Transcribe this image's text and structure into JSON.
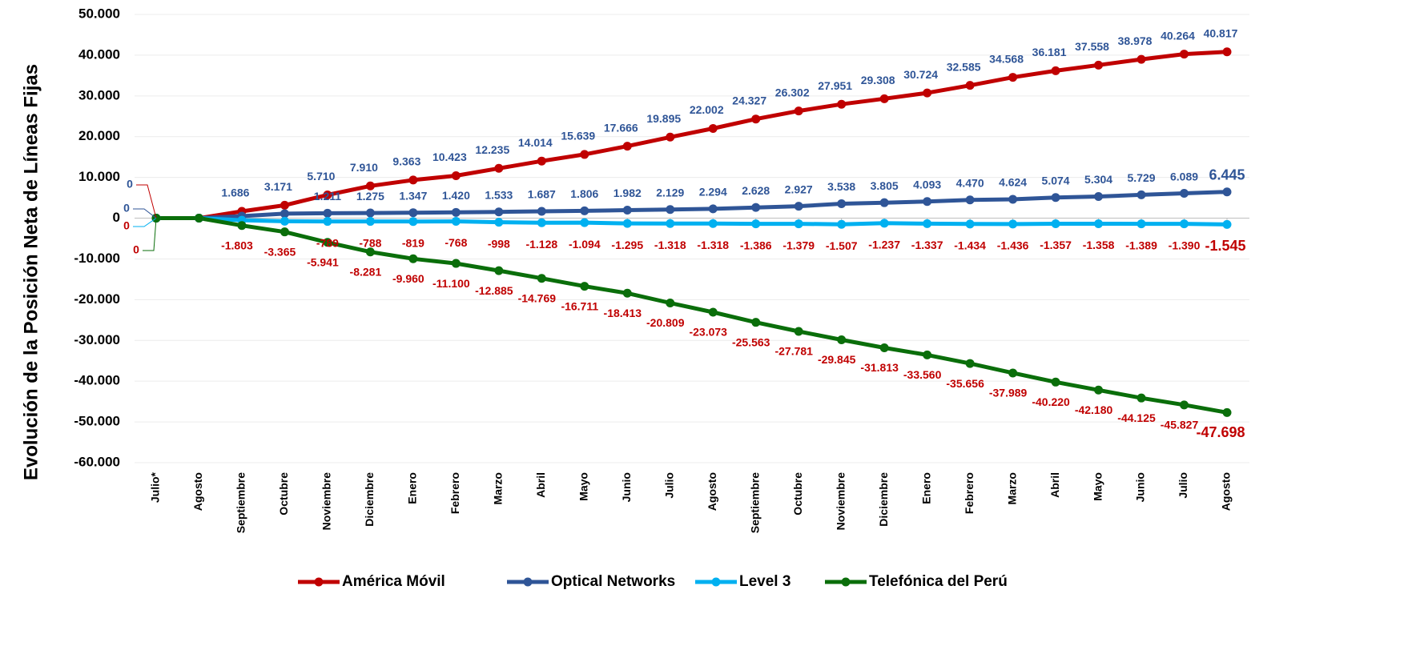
{
  "chart_data": {
    "type": "line",
    "y_label": "Evolución de la Posición Neta de Líneas Fijas",
    "categories": [
      "Julio*",
      "Agosto",
      "Septiembre",
      "Octubre",
      "Noviembre",
      "Diciembre",
      "Enero",
      "Febrero",
      "Marzo",
      "Abril",
      "Mayo",
      "Junio",
      "Julio",
      "Agosto",
      "Septiembre",
      "Octubre",
      "Noviembre",
      "Diciembre",
      "Enero",
      "Febrero",
      "Marzo",
      "Abril",
      "Mayo",
      "Junio",
      "Julio",
      "Agosto"
    ],
    "ylim": [
      -60000,
      50000
    ],
    "yticks": [
      {
        "value": -60000,
        "label": "-60.000"
      },
      {
        "value": -50000,
        "label": "-50.000"
      },
      {
        "value": -40000,
        "label": "-40.000"
      },
      {
        "value": -30000,
        "label": "-30.000"
      },
      {
        "value": -20000,
        "label": "-20.000"
      },
      {
        "value": -10000,
        "label": "-10.000"
      },
      0,
      {
        "value": 10000,
        "label": "10.000"
      },
      {
        "value": 20000,
        "label": "20.000"
      },
      {
        "value": 30000,
        "label": "30.000"
      },
      {
        "value": 40000,
        "label": "40.000"
      },
      {
        "value": 50000,
        "label": "50.000"
      }
    ],
    "grid": true,
    "legend": "bottom",
    "series": [
      {
        "name": "América Móvil",
        "color": "#c00000",
        "label_color": "#2f5597",
        "values": [
          0,
          0,
          1686,
          3171,
          5710,
          7910,
          9363,
          10423,
          12235,
          14014,
          15639,
          17666,
          19895,
          22002,
          24327,
          26302,
          27951,
          29308,
          30724,
          32585,
          34568,
          36181,
          37558,
          38978,
          40264,
          40817
        ],
        "value_labels": [
          "0",
          null,
          "1.686",
          "3.171",
          "5.710",
          "7.910",
          "9.363",
          "10.423",
          "12.235",
          "14.014",
          "15.639",
          "17.666",
          "19.895",
          "22.002",
          "24.327",
          "26.302",
          "27.951",
          "29.308",
          "30.724",
          "32.585",
          "34.568",
          "36.181",
          "37.558",
          "38.978",
          "40.264",
          "40.817"
        ]
      },
      {
        "name": "Optical Networks",
        "color": "#2f5597",
        "label_color": "#2f5597",
        "values": [
          0,
          0,
          500,
          1100,
          1211,
          1275,
          1347,
          1420,
          1533,
          1687,
          1806,
          1982,
          2129,
          2294,
          2628,
          2927,
          3538,
          3805,
          4093,
          4470,
          4624,
          5074,
          5304,
          5729,
          6089,
          6445
        ],
        "value_labels": [
          "0",
          null,
          null,
          null,
          "1.211",
          "1.275",
          "1.347",
          "1.420",
          "1.533",
          "1.687",
          "1.806",
          "1.982",
          "2.129",
          "2.294",
          "2.628",
          "2.927",
          "3.538",
          "3.805",
          "4.093",
          "4.470",
          "4.624",
          "5.074",
          "5.304",
          "5.729",
          "6.089",
          "6.445"
        ]
      },
      {
        "name": "Level 3",
        "color": "#00b0f0",
        "label_color": "#c00000",
        "values": [
          0,
          0,
          -500,
          -750,
          -789,
          -788,
          -819,
          -768,
          -998,
          -1128,
          -1094,
          -1295,
          -1318,
          -1318,
          -1386,
          -1379,
          -1507,
          -1237,
          -1337,
          -1434,
          -1436,
          -1357,
          -1358,
          -1389,
          -1390,
          -1545
        ],
        "value_labels": [
          "0",
          null,
          null,
          null,
          "-789",
          "-788",
          "-819",
          "-768",
          "-998",
          "-1.128",
          "-1.094",
          "-1.295",
          "-1.318",
          "-1.318",
          "-1.386",
          "-1.379",
          "-1.507",
          "-1.237",
          "-1.337",
          "-1.434",
          "-1.436",
          "-1.357",
          "-1.358",
          "-1.389",
          "-1.390",
          "-1.545"
        ]
      },
      {
        "name": "Telefónica del Perú",
        "color": "#0a6e0a",
        "label_color": "#c00000",
        "values": [
          0,
          0,
          -1803,
          -3365,
          -5941,
          -8281,
          -9960,
          -11100,
          -12885,
          -14769,
          -16711,
          -18413,
          -20809,
          -23073,
          -25563,
          -27781,
          -29845,
          -31813,
          -33560,
          -35656,
          -37989,
          -40220,
          -42180,
          -44125,
          -45827,
          -47698
        ],
        "value_labels": [
          "0",
          null,
          "-1.803",
          "-3.365",
          "-5.941",
          "-8.281",
          "-9.960",
          "-11.100",
          "-12.885",
          "-14.769",
          "-16.711",
          "-18.413",
          "-20.809",
          "-23.073",
          "-25.563",
          "-27.781",
          "-29.845",
          "-31.813",
          "-33.560",
          "-35.656",
          "-37.989",
          "-40.220",
          "-42.180",
          "-44.125",
          "-45.827",
          "-47.698"
        ]
      }
    ]
  }
}
